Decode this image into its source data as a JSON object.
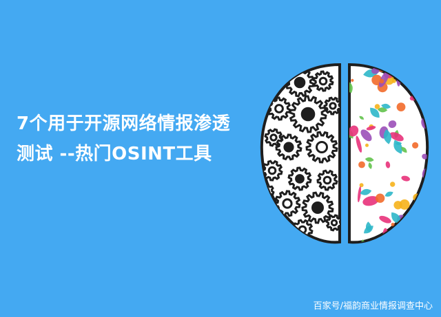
{
  "headline": {
    "line1": "7个用于开源网络情报渗透",
    "line2": "测试 --热门OSINT工具"
  },
  "watermark": "百家号/福韵商业情报调查中心",
  "colors": {
    "background": "#44a9f2",
    "text": "#ffffff",
    "gear_fill": "#ffffff",
    "gear_stroke": "#1e1e1e",
    "art_palette": [
      "#e8327a",
      "#f6b21b",
      "#62c24b",
      "#9b4fb8",
      "#f26a2a",
      "#2eb7c9"
    ]
  },
  "illustration": {
    "left_hemisphere": "gears-icon",
    "right_hemisphere": "floral-pattern-icon"
  }
}
